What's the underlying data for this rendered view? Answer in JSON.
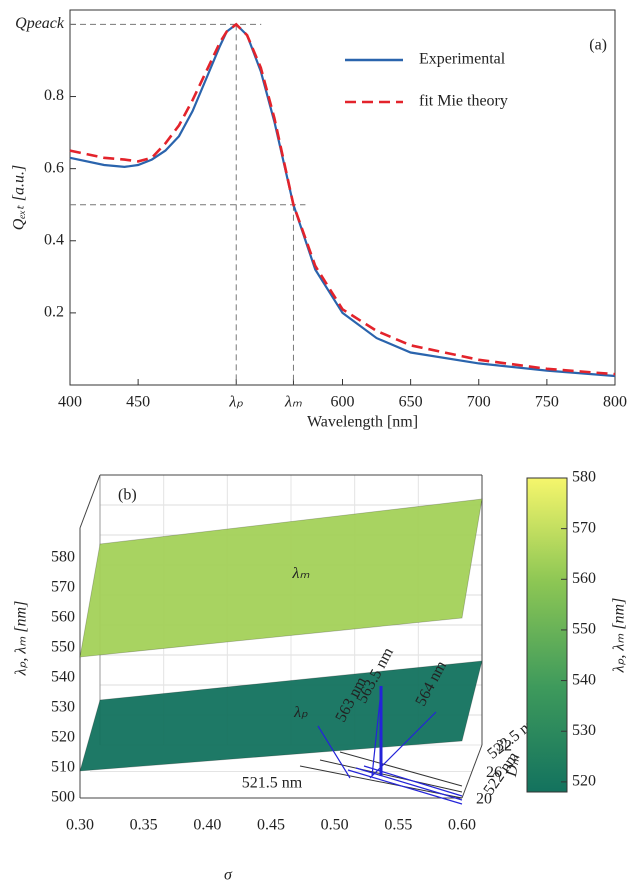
{
  "chart_data": [
    {
      "type": "line",
      "label": "(a)",
      "xlabel": "Wavelength [nm]",
      "ylabel": "Qₑₓₜ [a.u.]",
      "x": [
        400,
        425,
        440,
        450,
        460,
        470,
        480,
        490,
        500,
        510,
        515,
        522,
        530,
        540,
        550,
        564,
        580,
        600,
        625,
        650,
        700,
        750,
        800
      ],
      "series": [
        {
          "name": "Experimental",
          "color": "#2a64ad",
          "line_style": "solid",
          "values": [
            0.63,
            0.61,
            0.605,
            0.61,
            0.625,
            0.65,
            0.69,
            0.76,
            0.85,
            0.94,
            0.98,
            1.0,
            0.97,
            0.87,
            0.73,
            0.5,
            0.32,
            0.2,
            0.13,
            0.09,
            0.06,
            0.04,
            0.025
          ]
        },
        {
          "name": "fit Mie theory",
          "color": "#e3232b",
          "line_style": "dashed",
          "values": [
            0.65,
            0.63,
            0.625,
            0.62,
            0.63,
            0.67,
            0.72,
            0.79,
            0.87,
            0.95,
            0.98,
            1.0,
            0.97,
            0.88,
            0.74,
            0.5,
            0.33,
            0.21,
            0.15,
            0.11,
            0.07,
            0.045,
            0.03
          ]
        }
      ],
      "xlim": [
        400,
        800
      ],
      "xticks": [
        400,
        450,
        {
          "value": 522,
          "label": "λₚ"
        },
        {
          "value": 564,
          "label": "λₘ"
        },
        600,
        650,
        700,
        750,
        800
      ],
      "ylim": [
        0,
        1.04
      ],
      "yticks": [
        0.2,
        0.4,
        0.6,
        0.8,
        {
          "value": 1.0,
          "label": "Qpeack"
        }
      ],
      "hlines": [
        0.5
      ],
      "legend": "upper right"
    },
    {
      "type": "surface3d",
      "label": "(b)",
      "xlabel": "σ",
      "ylabel": "Dₘ",
      "zlabel": "λₚ, λₘ [nm]",
      "x": [
        0.3,
        0.6
      ],
      "y": [
        20,
        32
      ],
      "surfaces": [
        {
          "name": "λₘ",
          "values": [
            [
              547,
              560
            ],
            [
              567,
              582
            ]
          ]
        },
        {
          "name": "λₚ",
          "values": [
            [
              509,
              519
            ],
            [
              515,
              528
            ]
          ]
        }
      ],
      "xlim": [
        0.3,
        0.6
      ],
      "xticks": [
        {
          "value": 0.3,
          "label": "0.30"
        },
        0.35,
        {
          "value": 0.4,
          "label": "0.40"
        },
        0.45,
        {
          "value": 0.5,
          "label": "0.50"
        },
        0.55,
        {
          "value": 0.6,
          "label": "0.60"
        }
      ],
      "ylim": [
        20,
        32
      ],
      "yticks": [
        20,
        26,
        32
      ],
      "zlim": [
        500,
        590
      ],
      "zticks": [
        500,
        510,
        520,
        530,
        540,
        550,
        560,
        570,
        580
      ],
      "colorbar": {
        "label": "λₚ, λₘ [nm]",
        "clim": [
          518,
          580
        ],
        "ticks": [
          520,
          530,
          540,
          550,
          560,
          570,
          580
        ],
        "colors": [
          "#13725e",
          "#3e9a5c",
          "#8cc654",
          "#f6f66c"
        ]
      },
      "annotations": [
        "563 nm",
        "563.5 nm",
        "564 nm",
        "522.5 nm",
        "522 nm",
        "521.5 nm"
      ]
    }
  ]
}
